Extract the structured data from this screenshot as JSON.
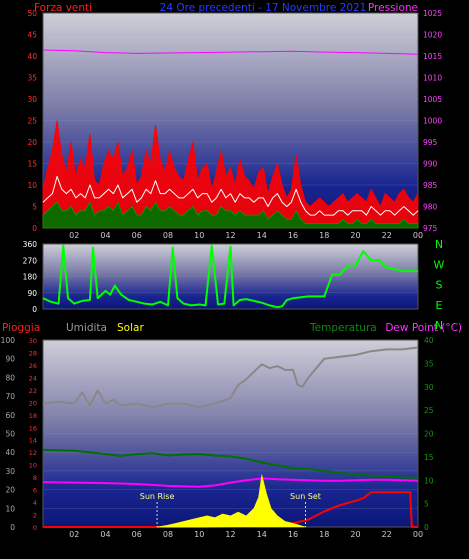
{
  "chart_data": [
    {
      "type": "line",
      "panel": "wind-pressure",
      "title": "24 Ore precedenti - 17 Novembre 2021",
      "ylabel_left": "Forza venti",
      "ylabel_right": "Pressione",
      "ylim_left": [
        0,
        50
      ],
      "ylim_right": [
        975,
        1025
      ],
      "yticks_left": [
        0,
        5,
        10,
        15,
        20,
        25,
        30,
        35,
        40,
        45,
        50
      ],
      "yticks_right": [
        975,
        980,
        985,
        990,
        995,
        1000,
        1005,
        1010,
        1015,
        1020,
        1025
      ],
      "x_ticks": [
        "02",
        "04",
        "06",
        "08",
        "10",
        "12",
        "14",
        "16",
        "18",
        "20",
        "22",
        "00"
      ],
      "series": [
        {
          "color": "#ff0000",
          "axis": "left",
          "x": [
            0,
            0.3,
            0.6,
            0.9,
            1.2,
            1.5,
            1.8,
            2.1,
            2.4,
            2.7,
            3.0,
            3.3,
            3.6,
            3.9,
            4.2,
            4.5,
            4.8,
            5.1,
            5.4,
            5.7,
            6.0,
            6.3,
            6.6,
            6.9,
            7.2,
            7.5,
            7.8,
            8.1,
            8.4,
            8.7,
            9.0,
            9.3,
            9.6,
            9.9,
            10.2,
            10.5,
            10.8,
            11.1,
            11.4,
            11.7,
            12.0,
            12.3,
            12.6,
            12.9,
            13.2,
            13.5,
            13.8,
            14.1,
            14.4,
            14.7,
            15.0,
            15.3,
            15.6,
            15.9,
            16.2,
            16.5,
            16.8,
            17.1,
            17.4,
            17.7,
            18.0,
            18.3,
            18.6,
            18.9,
            19.2,
            19.5,
            19.8,
            20.1,
            20.4,
            20.7,
            21.0,
            21.3,
            21.6,
            21.9,
            22.2,
            22.5,
            22.8,
            23.1,
            23.4,
            23.7,
            24.0
          ],
          "values": [
            9,
            14,
            18,
            25,
            17,
            13,
            20,
            12,
            16,
            14,
            22,
            11,
            10,
            15,
            18,
            16,
            20,
            12,
            14,
            18,
            10,
            12,
            18,
            15,
            24,
            16,
            13,
            18,
            14,
            12,
            11,
            16,
            20,
            11,
            14,
            15,
            9,
            13,
            18,
            12,
            14,
            10,
            16,
            12,
            11,
            9,
            13,
            14,
            8,
            12,
            15,
            10,
            7,
            9,
            17,
            10,
            6,
            5,
            6,
            7,
            6,
            5,
            6,
            7,
            8,
            6,
            7,
            8,
            7,
            6,
            9,
            7,
            5,
            8,
            7,
            6,
            8,
            9,
            7,
            6,
            8
          ]
        },
        {
          "color": "#ffffff",
          "axis": "left",
          "x": [
            0,
            0.3,
            0.6,
            0.9,
            1.2,
            1.5,
            1.8,
            2.1,
            2.4,
            2.7,
            3.0,
            3.3,
            3.6,
            3.9,
            4.2,
            4.5,
            4.8,
            5.1,
            5.4,
            5.7,
            6.0,
            6.3,
            6.6,
            6.9,
            7.2,
            7.5,
            7.8,
            8.1,
            8.4,
            8.7,
            9.0,
            9.3,
            9.6,
            9.9,
            10.2,
            10.5,
            10.8,
            11.1,
            11.4,
            11.7,
            12.0,
            12.3,
            12.6,
            12.9,
            13.2,
            13.5,
            13.8,
            14.1,
            14.4,
            14.7,
            15.0,
            15.3,
            15.6,
            15.9,
            16.2,
            16.5,
            16.8,
            17.1,
            17.4,
            17.7,
            18.0,
            18.3,
            18.6,
            18.9,
            19.2,
            19.5,
            19.8,
            20.1,
            20.4,
            20.7,
            21.0,
            21.3,
            21.6,
            21.9,
            22.2,
            22.5,
            22.8,
            23.1,
            23.4,
            23.7,
            24.0
          ],
          "values": [
            6,
            7,
            8,
            12,
            9,
            8,
            9,
            7,
            8,
            7,
            10,
            7,
            7,
            8,
            9,
            8,
            10,
            7,
            8,
            9,
            6,
            7,
            9,
            8,
            11,
            8,
            8,
            9,
            8,
            7,
            7,
            8,
            9,
            7,
            8,
            8,
            6,
            7,
            9,
            7,
            8,
            6,
            8,
            7,
            7,
            6,
            7,
            7,
            5,
            7,
            8,
            6,
            5,
            6,
            9,
            6,
            4,
            3,
            3,
            4,
            3,
            3,
            3,
            4,
            4,
            3,
            4,
            4,
            4,
            3,
            5,
            4,
            3,
            4,
            4,
            3,
            4,
            5,
            4,
            3,
            4
          ]
        },
        {
          "color": "#007000",
          "axis": "left",
          "x": [
            0,
            0.3,
            0.6,
            0.9,
            1.2,
            1.5,
            1.8,
            2.1,
            2.4,
            2.7,
            3.0,
            3.3,
            3.6,
            3.9,
            4.2,
            4.5,
            4.8,
            5.1,
            5.4,
            5.7,
            6.0,
            6.3,
            6.6,
            6.9,
            7.2,
            7.5,
            7.8,
            8.1,
            8.4,
            8.7,
            9.0,
            9.3,
            9.6,
            9.9,
            10.2,
            10.5,
            10.8,
            11.1,
            11.4,
            11.7,
            12.0,
            12.3,
            12.6,
            12.9,
            13.2,
            13.5,
            13.8,
            14.1,
            14.4,
            14.7,
            15.0,
            15.3,
            15.6,
            15.9,
            16.2,
            16.5,
            16.8,
            17.1,
            17.4,
            17.7,
            18.0,
            18.3,
            18.6,
            18.9,
            19.2,
            19.5,
            19.8,
            20.1,
            20.4,
            20.7,
            21.0,
            21.3,
            21.6,
            21.9,
            22.2,
            22.5,
            22.8,
            23.1,
            23.4,
            23.7,
            24.0
          ],
          "values": [
            3,
            4,
            5,
            6,
            4,
            4,
            5,
            3,
            4,
            4,
            6,
            3,
            4,
            4,
            5,
            4,
            6,
            3,
            4,
            5,
            3,
            3,
            5,
            4,
            6,
            4,
            4,
            5,
            4,
            3,
            3,
            4,
            5,
            3,
            4,
            4,
            3,
            3,
            5,
            4,
            4,
            3,
            4,
            3,
            3,
            3,
            3,
            4,
            2,
            3,
            4,
            3,
            2,
            2,
            4,
            2,
            1,
            1,
            1,
            1,
            1,
            1,
            1,
            1,
            2,
            1,
            1,
            2,
            1,
            1,
            2,
            1,
            1,
            1,
            1,
            1,
            1,
            2,
            1,
            1,
            1
          ]
        },
        {
          "color": "#ff00ff",
          "axis": "right",
          "x": [
            0,
            2,
            4,
            6,
            8,
            10,
            12,
            14,
            16,
            18,
            20,
            22,
            24
          ],
          "values": [
            1016.4,
            1016.2,
            1015.8,
            1015.6,
            1015.7,
            1015.8,
            1015.9,
            1016.0,
            1016.1,
            1015.9,
            1015.8,
            1015.6,
            1015.4
          ]
        }
      ]
    },
    {
      "type": "line",
      "panel": "wind-direction",
      "ylim": [
        0,
        360
      ],
      "yticks": [
        0,
        90,
        180,
        270,
        360
      ],
      "compass_labels": [
        "N",
        "W",
        "S",
        "E",
        "N"
      ],
      "x_ticks": [
        "02",
        "04",
        "06",
        "08",
        "10",
        "12",
        "14",
        "16",
        "18",
        "20",
        "22",
        "00"
      ],
      "series": [
        {
          "color": "#00ff00",
          "x": [
            0,
            0.5,
            1.0,
            1.3,
            1.6,
            2.0,
            2.5,
            3.0,
            3.2,
            3.5,
            4.0,
            4.3,
            4.6,
            5.0,
            5.5,
            6.0,
            6.5,
            7.0,
            7.5,
            8.0,
            8.3,
            8.6,
            9.0,
            9.5,
            10.0,
            10.4,
            10.8,
            11.2,
            11.6,
            12.0,
            12.2,
            12.6,
            13.0,
            13.5,
            14.0,
            14.5,
            15.0,
            15.3,
            15.6,
            16.0,
            16.5,
            17.0,
            17.5,
            18.0,
            18.5,
            19.0,
            19.5,
            20.0,
            20.5,
            21.0,
            21.5,
            22.0,
            22.5,
            23.0,
            23.5,
            24.0
          ],
          "values": [
            60,
            40,
            30,
            350,
            60,
            30,
            45,
            50,
            340,
            60,
            100,
            80,
            130,
            80,
            50,
            40,
            30,
            25,
            40,
            20,
            340,
            60,
            30,
            20,
            25,
            20,
            350,
            25,
            30,
            345,
            20,
            50,
            55,
            45,
            35,
            20,
            10,
            15,
            50,
            60,
            65,
            70,
            70,
            70,
            190,
            190,
            240,
            240,
            320,
            270,
            270,
            230,
            220,
            210,
            210,
            210
          ]
        }
      ]
    },
    {
      "type": "line",
      "panel": "rain-humidity-solar-temp",
      "ylabel_rain": "Pioggia",
      "ylabel_humidity": "Umidita",
      "ylabel_solar": "Solar",
      "ylabel_temperature": "Temperatura",
      "ylabel_dewpoint": "Dew Point (°C)",
      "ylim_humidity": [
        0,
        100
      ],
      "ylim_rain": [
        0,
        30
      ],
      "ylim_temperature": [
        0,
        40
      ],
      "yticks_humidity": [
        0,
        10,
        20,
        30,
        40,
        50,
        60,
        70,
        80,
        90,
        100
      ],
      "yticks_rain": [
        0,
        2,
        4,
        6,
        8,
        10,
        12,
        14,
        16,
        18,
        20,
        22,
        24,
        26,
        28,
        30
      ],
      "yticks_temperature": [
        0,
        5,
        10,
        15,
        20,
        25,
        30,
        35,
        40
      ],
      "x_ticks": [
        "02",
        "04",
        "06",
        "08",
        "10",
        "12",
        "14",
        "16",
        "18",
        "20",
        "22",
        "00"
      ],
      "annotations": [
        {
          "text": "Sun Rise",
          "x": 7.3
        },
        {
          "text": "Sun Set",
          "x": 16.8
        }
      ],
      "series": [
        {
          "color": "#888888",
          "axis": "humidity",
          "x": [
            0,
            1,
            2,
            2.5,
            3,
            3.5,
            4,
            4.5,
            5,
            6,
            7,
            8,
            9,
            10,
            11,
            12,
            12.5,
            13,
            14,
            14.5,
            15,
            15.5,
            16,
            16.3,
            16.6,
            17,
            17.5,
            18,
            19,
            20,
            21,
            22,
            23,
            24
          ],
          "values": [
            66,
            67,
            66,
            72,
            65,
            73,
            66,
            68,
            65,
            66,
            64,
            66,
            66,
            64,
            66,
            69,
            76,
            79,
            87,
            85,
            86,
            84,
            84,
            76,
            75,
            80,
            85,
            90,
            91,
            92,
            94,
            95,
            95,
            96
          ]
        },
        {
          "color": "#007000",
          "axis": "temperature",
          "x": [
            0,
            1,
            2,
            3,
            4,
            5,
            6,
            7,
            8,
            9,
            10,
            11,
            12,
            13,
            14,
            15,
            16,
            17,
            18,
            19,
            20,
            21,
            22,
            23,
            24
          ],
          "values": [
            16.5,
            16.4,
            16.3,
            16.0,
            15.6,
            15.2,
            15.6,
            15.8,
            15.3,
            15.5,
            15.6,
            15.3,
            15.1,
            14.6,
            13.8,
            13.2,
            12.6,
            12.4,
            12.0,
            11.6,
            11.2,
            11.0,
            10.8,
            10.6,
            10.5
          ]
        },
        {
          "color": "#ff00ff",
          "axis": "temperature",
          "x": [
            0,
            2,
            4,
            6,
            8,
            10,
            11,
            12,
            13,
            14,
            15,
            16,
            17,
            18,
            19,
            20,
            21,
            22,
            23,
            24
          ],
          "values": [
            9.6,
            9.5,
            9.4,
            9.2,
            8.8,
            8.6,
            8.9,
            9.5,
            10.0,
            10.4,
            10.2,
            10.1,
            10.0,
            9.9,
            9.9,
            10.0,
            10.1,
            10.1,
            10.0,
            9.9
          ]
        },
        {
          "color": "#ff0000",
          "axis": "rain",
          "x": [
            0,
            10,
            14.6,
            15,
            16,
            17,
            18,
            19,
            20,
            20.5,
            21,
            23.5,
            23.6,
            24
          ],
          "values": [
            0,
            0,
            0.2,
            0.4,
            0.6,
            1.2,
            2.5,
            3.5,
            4.2,
            4.6,
            5.6,
            5.6,
            0,
            0
          ]
        },
        {
          "color": "#ffff00",
          "axis": "humidity",
          "fill": true,
          "x": [
            7.3,
            8,
            8.5,
            9,
            9.5,
            10,
            10.5,
            11,
            11.5,
            12,
            12.5,
            13,
            13.5,
            13.8,
            14,
            14.3,
            14.6,
            15,
            15.5,
            16,
            16.8
          ],
          "values": [
            0,
            1,
            2,
            3,
            4,
            5,
            6,
            5,
            7,
            6,
            8,
            6,
            10,
            16,
            28,
            18,
            10,
            6,
            3,
            2,
            0
          ]
        }
      ]
    }
  ]
}
